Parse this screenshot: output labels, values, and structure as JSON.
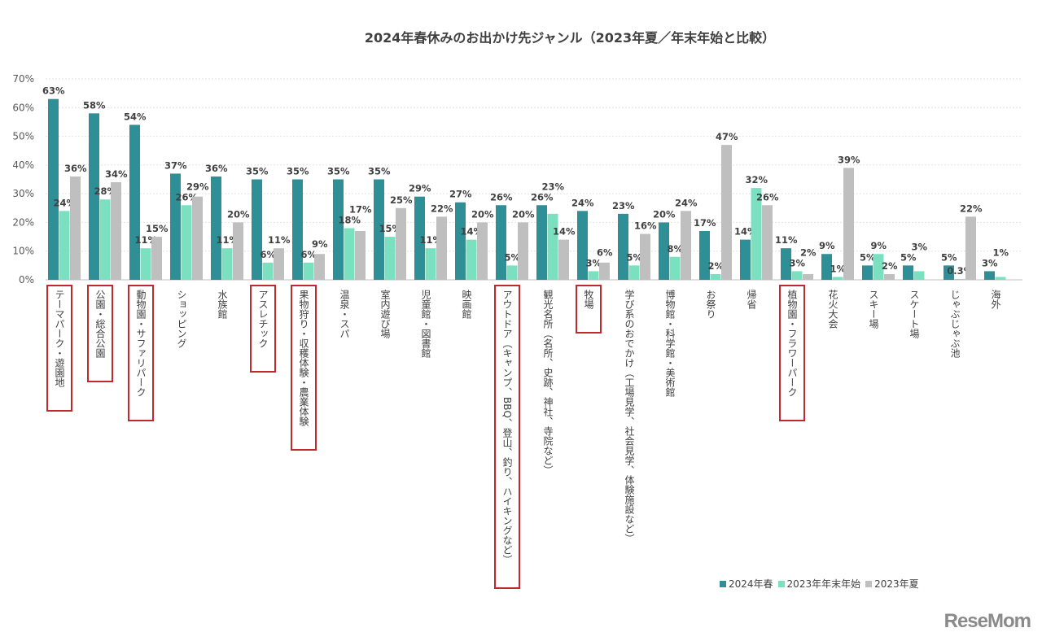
{
  "logo": "ReseMom",
  "chart_data": {
    "type": "bar",
    "title": "2024年春休みのお出かけ先ジャンル（2023年夏／年末年始と比較）",
    "xlabel": "",
    "ylabel": "",
    "ylim": [
      0,
      70
    ],
    "yticks": [
      "0%",
      "10%",
      "20%",
      "30%",
      "40%",
      "50%",
      "60%",
      "70%"
    ],
    "grid": true,
    "legend_position": "bottom-right",
    "categories": [
      "テーマパーク・遊園地",
      "公園・総合公園",
      "動物園・サファリパーク",
      "ショッピング",
      "水族館",
      "アスレチック",
      "果物狩り・収穫体験・農業体験",
      "温泉・スパ",
      "室内遊び場",
      "児童館・図書館",
      "映画館",
      "アウトドア（キャンプ、BBQ、登山、釣り、ハイキングなど）",
      "観光名所（名所、史跡、神社、寺院など）",
      "牧場",
      "学び系のおでかけ（工場見学、社会見学、体験施設など）",
      "博物館・科学館・美術館",
      "お祭り",
      "帰省",
      "植物園・フラワーパーク",
      "花火大会",
      "スキー場",
      "スケート場",
      "じゃぶじゃぶ池",
      "海外"
    ],
    "highlighted_categories": [
      "テーマパーク・遊園地",
      "公園・総合公園",
      "動物園・サファリパーク",
      "アスレチック",
      "果物狩り・収穫体験・農業体験",
      "アウトドア（キャンプ、BBQ、登山、釣り、ハイキングなど）",
      "牧場",
      "植物園・フラワーパーク"
    ],
    "highlight_color": "#c0282d",
    "series": [
      {
        "name": "2024年春",
        "color": "#2e8f96",
        "values": [
          63,
          58,
          54,
          37,
          36,
          35,
          35,
          35,
          35,
          29,
          27,
          26,
          26,
          24,
          23,
          20,
          17,
          14,
          11,
          9,
          5,
          5,
          5,
          3
        ]
      },
      {
        "name": "2023年年末年始",
        "color": "#7be0c0",
        "values": [
          24,
          28,
          11,
          26,
          11,
          6,
          6,
          18,
          15,
          11,
          14,
          5,
          23,
          3,
          5,
          8,
          2,
          32,
          3,
          1,
          9,
          3,
          0.3,
          1
        ]
      },
      {
        "name": "2023年夏",
        "color": "#bfbfbf",
        "values": [
          36,
          34,
          15,
          29,
          20,
          11,
          9,
          17,
          25,
          22,
          20,
          20,
          14,
          6,
          16,
          24,
          47,
          26,
          2,
          39,
          2,
          null,
          22,
          null
        ]
      }
    ]
  }
}
